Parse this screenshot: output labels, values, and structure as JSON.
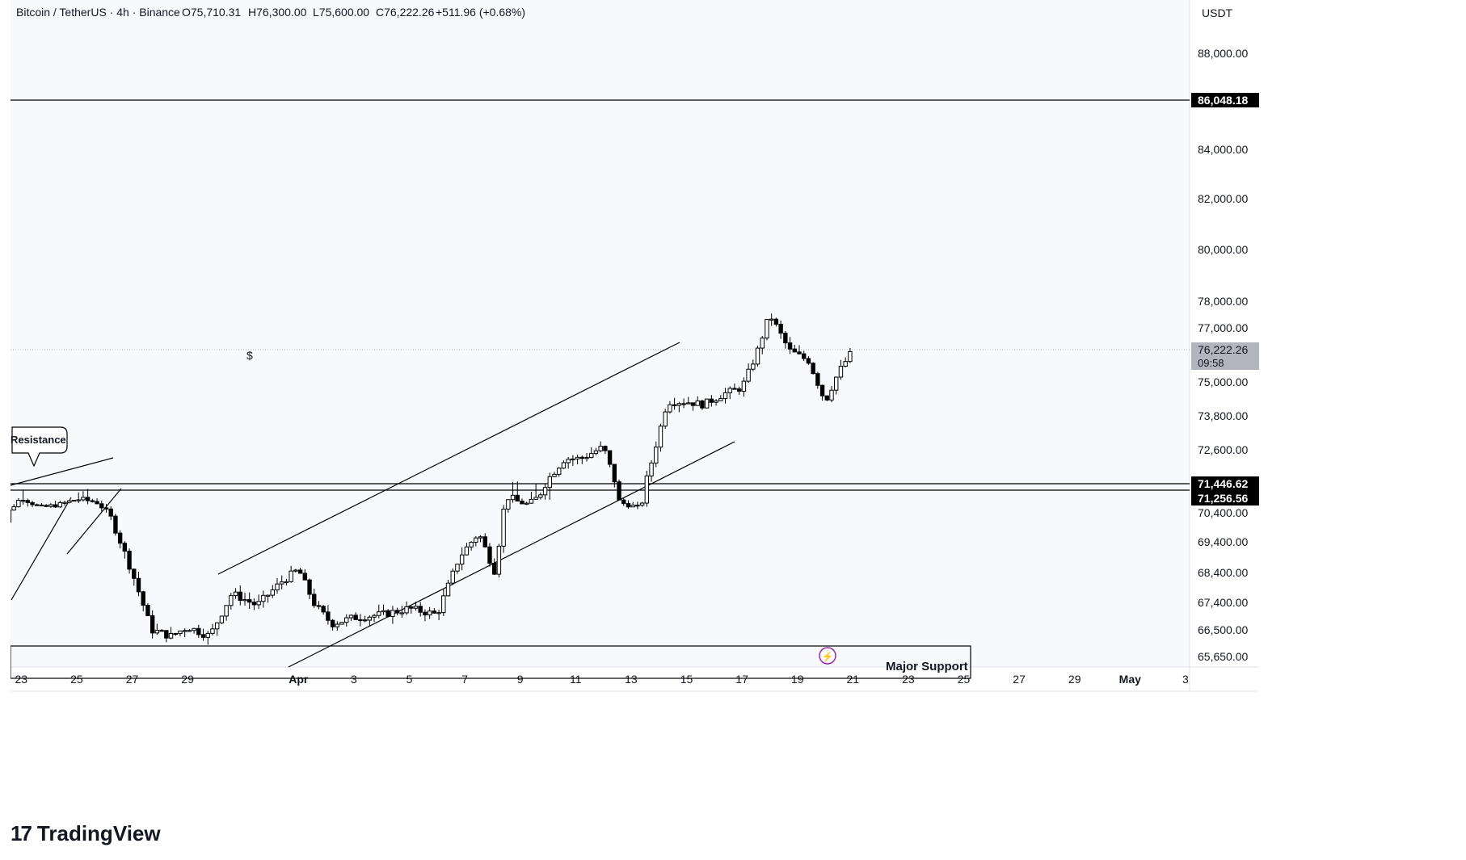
{
  "header": {
    "symbol": "Bitcoin / TetherUS · 4h · Binance",
    "open": "O75,710.31",
    "high": "H76,300.00",
    "low": "L75,600.00",
    "close": "C76,222.26",
    "change": "+511.96 (+0.68%)"
  },
  "currency": "USDT",
  "annotations": {
    "resistance": "Resistance",
    "major_support": "Major Support",
    "dollar_marker": "$"
  },
  "price_labels": {
    "level_top": "86,048.18",
    "current_price": "76,222.26",
    "countdown": "09:58",
    "level_mid_a": "71,446.62",
    "level_mid_b": "71,256.56"
  },
  "logo": {
    "text": "TradingView"
  },
  "colors": {
    "up": "#ffffff",
    "down": "#000000",
    "line": "#000000",
    "grid": "#f0f3fa",
    "pane_bg": "#f8f9fd",
    "current_price_bg": "#b2b5be"
  },
  "chart_data": {
    "type": "candlestick",
    "title": "Bitcoin / TetherUS · 4h · Binance",
    "xlabel": "",
    "ylabel": "",
    "y_axis_ticks": [
      88000,
      84000,
      82000,
      80000,
      78000,
      77000,
      75000,
      73800,
      72600,
      70400,
      69400,
      68400,
      67400,
      66500,
      65650
    ],
    "y_axis_tick_labels": [
      "88,000.00",
      "84,000.00",
      "82,000.00",
      "80,000.00",
      "78,000.00",
      "77,000.00",
      "75,000.00",
      "73,800.00",
      "72,600.00",
      "70,400.00",
      "69,400.00",
      "68,400.00",
      "67,400.00",
      "66,500.00",
      "65,650.00"
    ],
    "x_axis_ticks": [
      {
        "label": "23",
        "day": -9
      },
      {
        "label": "25",
        "day": -7
      },
      {
        "label": "27",
        "day": -5
      },
      {
        "label": "29",
        "day": -3
      },
      {
        "label": "Apr",
        "day": 1
      },
      {
        "label": "3",
        "day": 3
      },
      {
        "label": "5",
        "day": 5
      },
      {
        "label": "7",
        "day": 7
      },
      {
        "label": "9",
        "day": 9
      },
      {
        "label": "11",
        "day": 11
      },
      {
        "label": "13",
        "day": 13
      },
      {
        "label": "15",
        "day": 15
      },
      {
        "label": "17",
        "day": 17
      },
      {
        "label": "19",
        "day": 19
      },
      {
        "label": "21",
        "day": 21
      },
      {
        "label": "23",
        "day": 23
      },
      {
        "label": "25",
        "day": 25
      },
      {
        "label": "27",
        "day": 27
      },
      {
        "label": "29",
        "day": 29
      },
      {
        "label": "May",
        "day": 31
      },
      {
        "label": "3",
        "day": 33
      }
    ],
    "horizontal_levels": [
      86048.18,
      71446.62,
      71256.56
    ],
    "support_line": 65900,
    "current_price": 76222.26,
    "candle_anchors": [
      {
        "day": -10.1,
        "price": 68600
      },
      {
        "day": -9.5,
        "price": 70400
      },
      {
        "day": -9.0,
        "price": 71300
      },
      {
        "day": -8.3,
        "price": 70700
      },
      {
        "day": -7.6,
        "price": 70900
      },
      {
        "day": -7.0,
        "price": 71200
      },
      {
        "day": -6.3,
        "price": 71050
      },
      {
        "day": -5.8,
        "price": 70300
      },
      {
        "day": -5.0,
        "price": 68400
      },
      {
        "day": -4.3,
        "price": 66500
      },
      {
        "day": -3.6,
        "price": 66300
      },
      {
        "day": -3.0,
        "price": 66600
      },
      {
        "day": -2.2,
        "price": 66300
      },
      {
        "day": -1.4,
        "price": 67700
      },
      {
        "day": -0.5,
        "price": 67300
      },
      {
        "day": 0.4,
        "price": 68100
      },
      {
        "day": 1.0,
        "price": 68500
      },
      {
        "day": 1.6,
        "price": 67300
      },
      {
        "day": 2.2,
        "price": 66700
      },
      {
        "day": 3.0,
        "price": 66900
      },
      {
        "day": 4.0,
        "price": 67000
      },
      {
        "day": 5.0,
        "price": 67200
      },
      {
        "day": 6.0,
        "price": 67000
      },
      {
        "day": 6.8,
        "price": 68900
      },
      {
        "day": 7.5,
        "price": 69700
      },
      {
        "day": 8.1,
        "price": 68400
      },
      {
        "day": 8.5,
        "price": 71300
      },
      {
        "day": 9.2,
        "price": 70900
      },
      {
        "day": 10.0,
        "price": 71600
      },
      {
        "day": 10.6,
        "price": 72300
      },
      {
        "day": 11.2,
        "price": 72300
      },
      {
        "day": 12.0,
        "price": 72700
      },
      {
        "day": 12.6,
        "price": 71000
      },
      {
        "day": 13.3,
        "price": 70700
      },
      {
        "day": 13.8,
        "price": 72400
      },
      {
        "day": 14.3,
        "price": 74300
      },
      {
        "day": 15.0,
        "price": 74300
      },
      {
        "day": 15.6,
        "price": 74200
      },
      {
        "day": 16.4,
        "price": 74600
      },
      {
        "day": 17.0,
        "price": 74800
      },
      {
        "day": 17.5,
        "price": 76000
      },
      {
        "day": 18.0,
        "price": 77500
      },
      {
        "day": 18.7,
        "price": 76200
      },
      {
        "day": 19.4,
        "price": 75800
      },
      {
        "day": 20.0,
        "price": 74300
      },
      {
        "day": 20.5,
        "price": 75400
      },
      {
        "day": 21.0,
        "price": 76200
      }
    ]
  }
}
